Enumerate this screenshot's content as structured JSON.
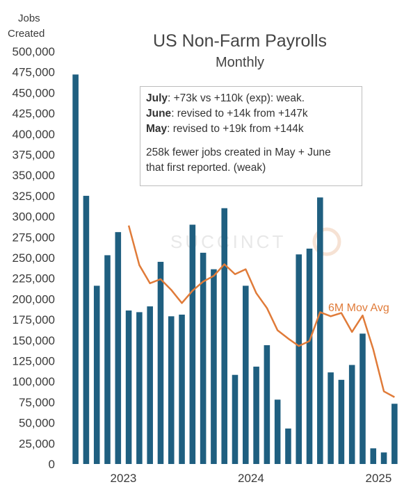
{
  "chart_data": {
    "type": "bar",
    "title": "US Non-Farm Payrolls",
    "subtitle": "Monthly",
    "ylabel": [
      "Jobs",
      "Created"
    ],
    "xlabel": "",
    "ylim": [
      0,
      500000
    ],
    "yticks": [
      0,
      25000,
      50000,
      75000,
      100000,
      125000,
      150000,
      175000,
      200000,
      225000,
      250000,
      275000,
      300000,
      325000,
      350000,
      375000,
      400000,
      425000,
      450000,
      475000,
      500000
    ],
    "ytick_labels": [
      "0",
      "25,000",
      "50,000",
      "75,000",
      "100,000",
      "125,000",
      "150,000",
      "175,000",
      "200,000",
      "225,000",
      "250,000",
      "275,000",
      "300,000",
      "325,000",
      "350,000",
      "375,000",
      "400,000",
      "425,000",
      "450,000",
      "475,000",
      "500,000"
    ],
    "x_year_labels": [
      {
        "label": "2023",
        "index": 4.5
      },
      {
        "label": "2024",
        "index": 16.5
      },
      {
        "label": "2025",
        "index": 28.5
      }
    ],
    "series": [
      {
        "values": [
          472000,
          325000,
          216000,
          253000,
          281000,
          186000,
          184000,
          191000,
          245000,
          179000,
          181000,
          290000,
          256000,
          236000,
          310000,
          108000,
          216000,
          118000,
          144000,
          78000,
          43000,
          254000,
          261000,
          323000,
          111000,
          102000,
          120000,
          158000,
          19000,
          14000,
          73000
        ],
        "color": "#1f5f80"
      },
      {
        "name": "6M Mov Avg",
        "type": "line",
        "color": "#e07b39",
        "start_index": 5,
        "values": [
          289000,
          241000,
          219000,
          224000,
          211000,
          195000,
          210000,
          221000,
          228000,
          242000,
          230000,
          236000,
          207000,
          189000,
          162000,
          152000,
          143000,
          149000,
          184000,
          179000,
          183000,
          160000,
          180000,
          139000,
          88000,
          81000
        ]
      }
    ],
    "annotation": {
      "lines": [
        {
          "bold": "July",
          "text": ": +73k vs +110k (exp): weak."
        },
        {
          "bold": "June",
          "text": ": revised to +14k from +147k"
        },
        {
          "bold": "May",
          "text": ": revised to +19k from +144k"
        }
      ],
      "paragraph": [
        "258k fewer jobs created in May + June",
        "that first reported. (weak)"
      ]
    },
    "watermark": "SUCCINCT"
  }
}
